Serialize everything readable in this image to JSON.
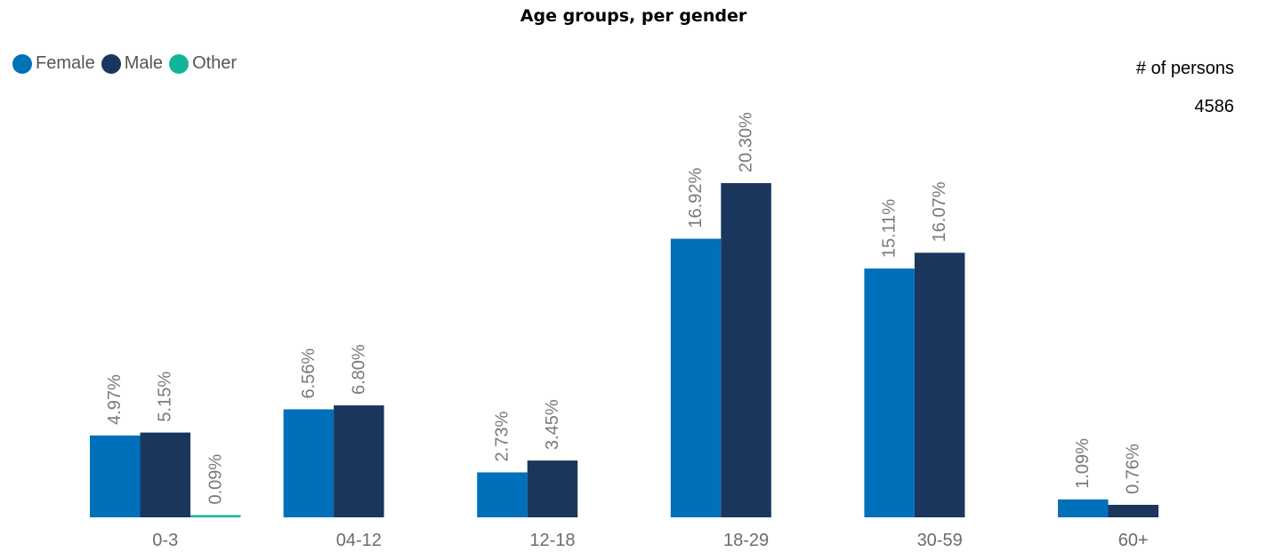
{
  "title": "Age groups, per gender",
  "legend": [
    {
      "label": "Female",
      "color": "#0070BA"
    },
    {
      "label": "Male",
      "color": "#1B365D"
    },
    {
      "label": "Other",
      "color": "#13B59A"
    }
  ],
  "kpi": {
    "label": "# of persons",
    "value": "4586"
  },
  "chart_data": {
    "type": "bar",
    "title": "Age groups, per gender",
    "categories": [
      "0-3",
      "04-12",
      "12-18",
      "18-29",
      "30-59",
      "60+"
    ],
    "series": [
      {
        "name": "Female",
        "color": "#0070BA",
        "values": [
          4.97,
          6.56,
          2.73,
          16.92,
          15.11,
          1.09
        ],
        "labels": [
          "4.97%",
          "6.56%",
          "2.73%",
          "16.92%",
          "15.11%",
          "1.09%"
        ]
      },
      {
        "name": "Male",
        "color": "#1B365D",
        "values": [
          5.15,
          6.8,
          3.45,
          20.3,
          16.07,
          0.76
        ],
        "labels": [
          "5.15%",
          "6.80%",
          "3.45%",
          "20.30%",
          "16.07%",
          "0.76%"
        ]
      },
      {
        "name": "Other",
        "color": "#13B59A",
        "values": [
          0.09,
          null,
          null,
          null,
          null,
          null
        ],
        "labels": [
          "0.09%",
          null,
          null,
          null,
          null,
          null
        ]
      }
    ],
    "ylim": [
      0,
      20.3
    ],
    "grid": false,
    "legend_position": "top-left"
  }
}
